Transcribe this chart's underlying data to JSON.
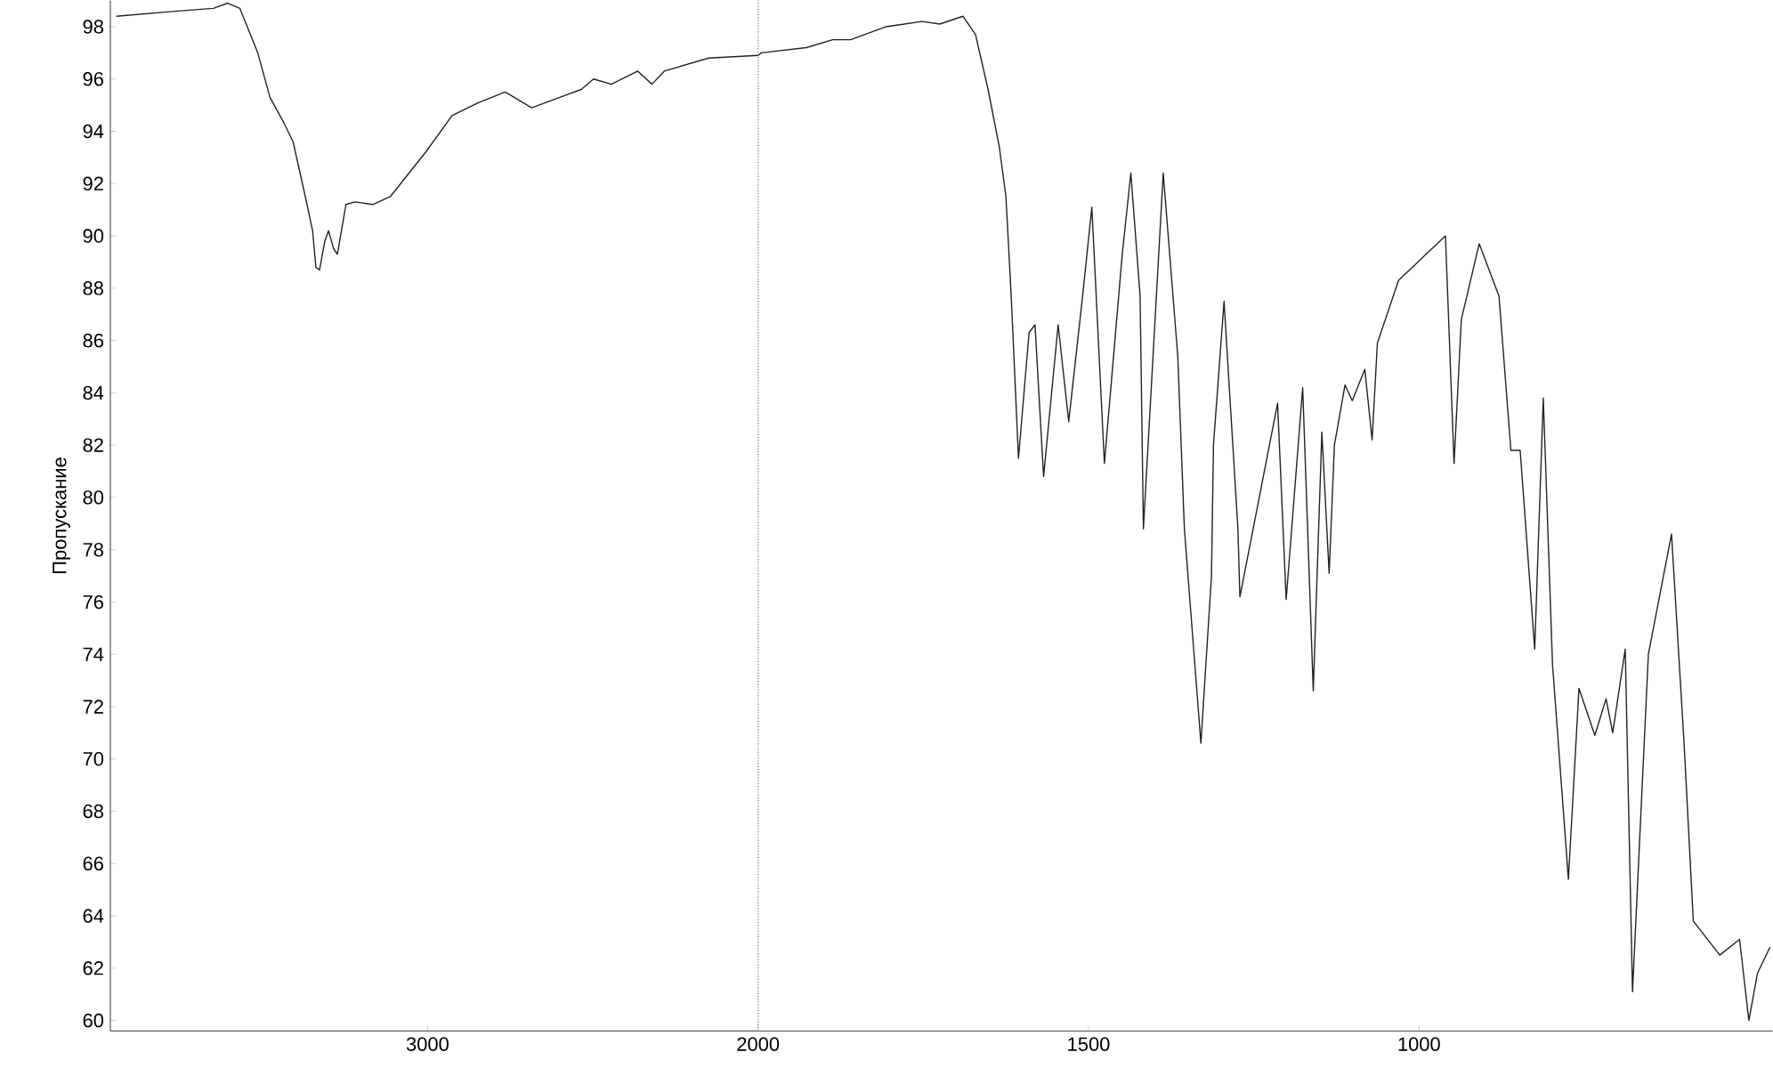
{
  "chart_data": [
    {
      "type": "line",
      "ylabel": "Пропускание",
      "x": [
        3942,
        3755,
        3648,
        3605,
        3568,
        3514,
        3477,
        3434,
        3407,
        3370,
        3348,
        3338,
        3327,
        3311,
        3300,
        3284,
        3273,
        3247,
        3220,
        3166,
        3113,
        3006,
        2926,
        2845,
        2765,
        2685,
        2578,
        2535,
        2498,
        2444,
        2364,
        2321,
        2284,
        2150,
        2000
      ],
      "series": [
        {
          "color": "#222222",
          "values": [
            98.4,
            98.6,
            98.7,
            98.9,
            98.7,
            97.0,
            95.3,
            94.3,
            93.6,
            91.5,
            90.2,
            88.8,
            88.7,
            89.8,
            90.2,
            89.5,
            89.3,
            91.2,
            91.3,
            91.2,
            91.5,
            93.2,
            94.6,
            95.1,
            95.5,
            94.9,
            95.4,
            95.6,
            96.0,
            95.8,
            96.3,
            95.8,
            96.3,
            96.8,
            96.9
          ]
        }
      ],
      "xlim": [
        3960,
        2000
      ],
      "ylim": [
        59.6,
        99
      ],
      "xticks": [
        3000,
        2000
      ],
      "yticks": [
        60,
        62,
        64,
        66,
        68,
        70,
        72,
        74,
        76,
        78,
        80,
        82,
        84,
        86,
        88,
        90,
        92,
        94,
        96,
        98
      ],
      "grid": false,
      "marker": "none",
      "line_style": "solid"
    },
    {
      "type": "line",
      "x": [
        2000,
        1995,
        1927,
        1887,
        1860,
        1806,
        1752,
        1725,
        1690,
        1671,
        1652,
        1635,
        1625,
        1617,
        1611,
        1606,
        1590,
        1581,
        1568,
        1546,
        1530,
        1509,
        1495,
        1476,
        1449,
        1436,
        1422,
        1417,
        1387,
        1365,
        1355,
        1330,
        1314,
        1311,
        1295,
        1274,
        1271,
        1214,
        1201,
        1176,
        1160,
        1147,
        1136,
        1128,
        1112,
        1101,
        1082,
        1071,
        1063,
        1031,
        960,
        947,
        936,
        909,
        879,
        861,
        847,
        825,
        812,
        798,
        774,
        758,
        734,
        717,
        707,
        688,
        677,
        653,
        618,
        599,
        585,
        545,
        515,
        501,
        488,
        469
      ],
      "series": [
        {
          "color": "#222222",
          "values": [
            96.9,
            97.0,
            97.2,
            97.5,
            97.5,
            98.0,
            98.2,
            98.1,
            98.4,
            97.7,
            95.6,
            93.4,
            91.5,
            87.7,
            84.3,
            81.5,
            86.3,
            86.6,
            80.8,
            86.6,
            82.9,
            87.7,
            91.1,
            81.3,
            89.3,
            92.4,
            87.7,
            78.8,
            92.4,
            85.4,
            78.8,
            70.6,
            77.0,
            82.0,
            87.5,
            78.8,
            76.2,
            83.6,
            76.1,
            84.2,
            72.6,
            82.5,
            77.1,
            82.0,
            84.3,
            83.7,
            84.9,
            82.2,
            85.9,
            88.3,
            90.0,
            81.3,
            86.8,
            89.7,
            87.7,
            81.8,
            81.8,
            74.2,
            83.8,
            73.6,
            65.4,
            72.7,
            70.9,
            72.3,
            71.0,
            74.2,
            61.1,
            74.0,
            78.6,
            70.6,
            63.8,
            62.5,
            63.1,
            60.0,
            61.8,
            62.8
          ]
        }
      ],
      "xlim": [
        2000,
        465
      ],
      "ylim": [
        59.6,
        99
      ],
      "xticks": [
        1500,
        1000
      ],
      "tick_labels": "x",
      "ref_lines": [
        {
          "axis": "x",
          "value": 2000,
          "line_style": "dotted",
          "color": "#777777"
        }
      ],
      "grid": false,
      "marker": "none",
      "line_style": "solid"
    }
  ]
}
